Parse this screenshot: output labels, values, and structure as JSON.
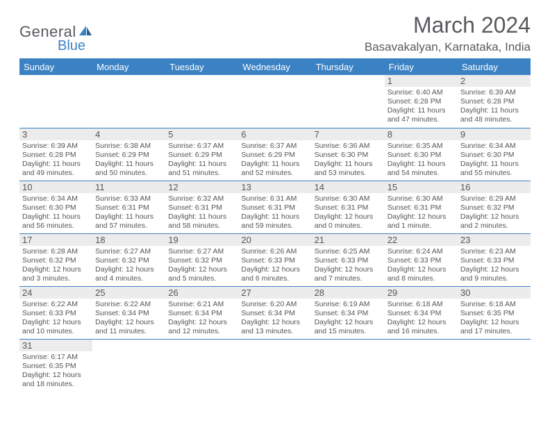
{
  "logo": {
    "line1": "General",
    "line2": "Blue"
  },
  "title": "March 2024",
  "location": "Basavakalyan, Karnataka, India",
  "colors": {
    "accent": "#3b82c4",
    "daynum_bg": "#ececec",
    "text": "#555555",
    "background": "#ffffff"
  },
  "day_headers": [
    "Sunday",
    "Monday",
    "Tuesday",
    "Wednesday",
    "Thursday",
    "Friday",
    "Saturday"
  ],
  "weeks": [
    [
      null,
      null,
      null,
      null,
      null,
      {
        "n": "1",
        "sunrise": "Sunrise: 6:40 AM",
        "sunset": "Sunset: 6:28 PM",
        "daylight": "Daylight: 11 hours and 47 minutes."
      },
      {
        "n": "2",
        "sunrise": "Sunrise: 6:39 AM",
        "sunset": "Sunset: 6:28 PM",
        "daylight": "Daylight: 11 hours and 48 minutes."
      }
    ],
    [
      {
        "n": "3",
        "sunrise": "Sunrise: 6:39 AM",
        "sunset": "Sunset: 6:28 PM",
        "daylight": "Daylight: 11 hours and 49 minutes."
      },
      {
        "n": "4",
        "sunrise": "Sunrise: 6:38 AM",
        "sunset": "Sunset: 6:29 PM",
        "daylight": "Daylight: 11 hours and 50 minutes."
      },
      {
        "n": "5",
        "sunrise": "Sunrise: 6:37 AM",
        "sunset": "Sunset: 6:29 PM",
        "daylight": "Daylight: 11 hours and 51 minutes."
      },
      {
        "n": "6",
        "sunrise": "Sunrise: 6:37 AM",
        "sunset": "Sunset: 6:29 PM",
        "daylight": "Daylight: 11 hours and 52 minutes."
      },
      {
        "n": "7",
        "sunrise": "Sunrise: 6:36 AM",
        "sunset": "Sunset: 6:30 PM",
        "daylight": "Daylight: 11 hours and 53 minutes."
      },
      {
        "n": "8",
        "sunrise": "Sunrise: 6:35 AM",
        "sunset": "Sunset: 6:30 PM",
        "daylight": "Daylight: 11 hours and 54 minutes."
      },
      {
        "n": "9",
        "sunrise": "Sunrise: 6:34 AM",
        "sunset": "Sunset: 6:30 PM",
        "daylight": "Daylight: 11 hours and 55 minutes."
      }
    ],
    [
      {
        "n": "10",
        "sunrise": "Sunrise: 6:34 AM",
        "sunset": "Sunset: 6:30 PM",
        "daylight": "Daylight: 11 hours and 56 minutes."
      },
      {
        "n": "11",
        "sunrise": "Sunrise: 6:33 AM",
        "sunset": "Sunset: 6:31 PM",
        "daylight": "Daylight: 11 hours and 57 minutes."
      },
      {
        "n": "12",
        "sunrise": "Sunrise: 6:32 AM",
        "sunset": "Sunset: 6:31 PM",
        "daylight": "Daylight: 11 hours and 58 minutes."
      },
      {
        "n": "13",
        "sunrise": "Sunrise: 6:31 AM",
        "sunset": "Sunset: 6:31 PM",
        "daylight": "Daylight: 11 hours and 59 minutes."
      },
      {
        "n": "14",
        "sunrise": "Sunrise: 6:30 AM",
        "sunset": "Sunset: 6:31 PM",
        "daylight": "Daylight: 12 hours and 0 minutes."
      },
      {
        "n": "15",
        "sunrise": "Sunrise: 6:30 AM",
        "sunset": "Sunset: 6:31 PM",
        "daylight": "Daylight: 12 hours and 1 minute."
      },
      {
        "n": "16",
        "sunrise": "Sunrise: 6:29 AM",
        "sunset": "Sunset: 6:32 PM",
        "daylight": "Daylight: 12 hours and 2 minutes."
      }
    ],
    [
      {
        "n": "17",
        "sunrise": "Sunrise: 6:28 AM",
        "sunset": "Sunset: 6:32 PM",
        "daylight": "Daylight: 12 hours and 3 minutes."
      },
      {
        "n": "18",
        "sunrise": "Sunrise: 6:27 AM",
        "sunset": "Sunset: 6:32 PM",
        "daylight": "Daylight: 12 hours and 4 minutes."
      },
      {
        "n": "19",
        "sunrise": "Sunrise: 6:27 AM",
        "sunset": "Sunset: 6:32 PM",
        "daylight": "Daylight: 12 hours and 5 minutes."
      },
      {
        "n": "20",
        "sunrise": "Sunrise: 6:26 AM",
        "sunset": "Sunset: 6:33 PM",
        "daylight": "Daylight: 12 hours and 6 minutes."
      },
      {
        "n": "21",
        "sunrise": "Sunrise: 6:25 AM",
        "sunset": "Sunset: 6:33 PM",
        "daylight": "Daylight: 12 hours and 7 minutes."
      },
      {
        "n": "22",
        "sunrise": "Sunrise: 6:24 AM",
        "sunset": "Sunset: 6:33 PM",
        "daylight": "Daylight: 12 hours and 8 minutes."
      },
      {
        "n": "23",
        "sunrise": "Sunrise: 6:23 AM",
        "sunset": "Sunset: 6:33 PM",
        "daylight": "Daylight: 12 hours and 9 minutes."
      }
    ],
    [
      {
        "n": "24",
        "sunrise": "Sunrise: 6:22 AM",
        "sunset": "Sunset: 6:33 PM",
        "daylight": "Daylight: 12 hours and 10 minutes."
      },
      {
        "n": "25",
        "sunrise": "Sunrise: 6:22 AM",
        "sunset": "Sunset: 6:34 PM",
        "daylight": "Daylight: 12 hours and 11 minutes."
      },
      {
        "n": "26",
        "sunrise": "Sunrise: 6:21 AM",
        "sunset": "Sunset: 6:34 PM",
        "daylight": "Daylight: 12 hours and 12 minutes."
      },
      {
        "n": "27",
        "sunrise": "Sunrise: 6:20 AM",
        "sunset": "Sunset: 6:34 PM",
        "daylight": "Daylight: 12 hours and 13 minutes."
      },
      {
        "n": "28",
        "sunrise": "Sunrise: 6:19 AM",
        "sunset": "Sunset: 6:34 PM",
        "daylight": "Daylight: 12 hours and 15 minutes."
      },
      {
        "n": "29",
        "sunrise": "Sunrise: 6:18 AM",
        "sunset": "Sunset: 6:34 PM",
        "daylight": "Daylight: 12 hours and 16 minutes."
      },
      {
        "n": "30",
        "sunrise": "Sunrise: 6:18 AM",
        "sunset": "Sunset: 6:35 PM",
        "daylight": "Daylight: 12 hours and 17 minutes."
      }
    ],
    [
      {
        "n": "31",
        "sunrise": "Sunrise: 6:17 AM",
        "sunset": "Sunset: 6:35 PM",
        "daylight": "Daylight: 12 hours and 18 minutes."
      },
      null,
      null,
      null,
      null,
      null,
      null
    ]
  ]
}
